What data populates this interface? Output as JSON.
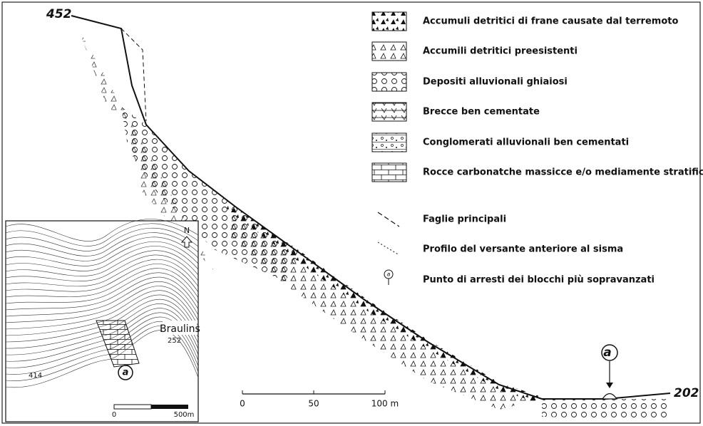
{
  "profile": {
    "top_elevation": "452",
    "bottom_elevation": "202",
    "marker": "a"
  },
  "legend": [
    {
      "label": "Accumuli detritici di frane causate dal terremoto"
    },
    {
      "label": "Accumili detritici preesistenti"
    },
    {
      "label": "Depositi alluvionali ghiaiosi"
    },
    {
      "label": "Brecce ben cementate"
    },
    {
      "label": "Conglomerati alluvionali ben cementati"
    },
    {
      "label": "Rocce carbonatche massicce e/o mediamente stratificate"
    },
    {
      "label": "Faglie principali"
    },
    {
      "label": "Profilo del versante anteriore al sisma"
    },
    {
      "label": "Punto di arresti dei blocchi più sopravanzati",
      "marker": "a"
    }
  ],
  "scale": {
    "ticks": [
      "0",
      "50",
      "100 m"
    ]
  },
  "inset": {
    "place": "Braulins",
    "elevation_village": "252",
    "elevation_hill": "414",
    "north": "N",
    "marker": "a",
    "scale": [
      "0",
      "500m"
    ]
  }
}
